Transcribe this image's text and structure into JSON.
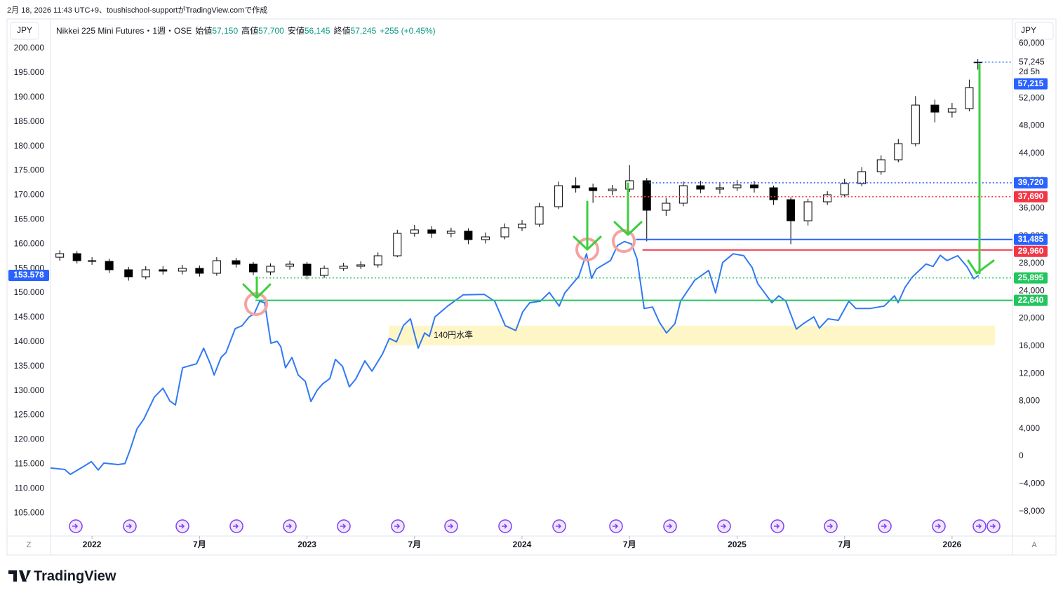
{
  "header": {
    "attribution": "2月 18, 2026 11:43 UTC+9、toushischool-supportがTradingView.comで作成",
    "currency_left": "JPY",
    "currency_right": "JPY"
  },
  "footer": {
    "logo": "TradingView",
    "left_button": "Z",
    "right_button": "A"
  },
  "chart_data": {
    "type": "candlestick",
    "title": "Nikkei 225 Mini Futures・1週・OSE",
    "ohlc_header": [
      {
        "label": "始値",
        "text": "57,150"
      },
      {
        "label": "高値",
        "text": "57,700"
      },
      {
        "label": "安値",
        "text": "56,145"
      },
      {
        "label": "終値",
        "text": "57,245"
      }
    ],
    "change": "+255 (+0.45%)",
    "countdown": "2d 5h",
    "grid": false,
    "xlim": [
      2021.807,
      2026.281
    ],
    "xticks": [
      2022,
      {
        "value": 2022.5,
        "label": "7月"
      },
      2023,
      {
        "value": 2023.5,
        "label": "7月"
      },
      2024,
      {
        "value": 2024.5,
        "label": "7月"
      },
      2025,
      {
        "value": 2025.5,
        "label": "7月"
      },
      2026
    ],
    "ylim": [
      100.29,
      205.87
    ],
    "yticks": [
      {
        "value": 105,
        "label": "105.000"
      },
      {
        "value": 110,
        "label": "110.000"
      },
      {
        "value": 115,
        "label": "115.000"
      },
      {
        "value": 120,
        "label": "120.000"
      },
      {
        "value": 125,
        "label": "125.000"
      },
      {
        "value": 130,
        "label": "130.000"
      },
      {
        "value": 135,
        "label": "135.000"
      },
      {
        "value": 140,
        "label": "140.000"
      },
      {
        "value": 145,
        "label": "145.000"
      },
      {
        "value": 150,
        "label": "150.000"
      },
      {
        "value": 155,
        "label": "155.000"
      },
      {
        "value": 160,
        "label": "160.000"
      },
      {
        "value": 165,
        "label": "165.000"
      },
      {
        "value": 170,
        "label": "170.000"
      },
      {
        "value": 175,
        "label": "175.000"
      },
      {
        "value": 180,
        "label": "180.000"
      },
      {
        "value": 185,
        "label": "185.000"
      },
      {
        "value": 190,
        "label": "190.000"
      },
      {
        "value": 195,
        "label": "195.000"
      },
      {
        "value": 200,
        "label": "200.000"
      }
    ],
    "y2lim": [
      -11605,
      63420
    ],
    "y2ticks": [
      {
        "value": -8000,
        "label": "−8,000"
      },
      {
        "value": -4000,
        "label": "−4,000"
      },
      0,
      {
        "value": 4000,
        "label": "4,000"
      },
      {
        "value": 8000,
        "label": "8,000"
      },
      {
        "value": 12000,
        "label": "12,000"
      },
      {
        "value": 16000,
        "label": "16,000"
      },
      {
        "value": 20000,
        "label": "20,000"
      },
      {
        "value": 24000,
        "label": "24,000"
      },
      {
        "value": 28000,
        "label": "28,000"
      },
      {
        "value": 32000,
        "label": "32,000"
      },
      {
        "value": 36000,
        "label": "36,000"
      },
      {
        "value": 40000,
        "label": "40,000"
      },
      {
        "value": 44000,
        "label": "44,000"
      },
      {
        "value": 48000,
        "label": "48,000"
      },
      {
        "value": 52000,
        "label": "52,000"
      },
      {
        "value": 56000,
        "label": "56,000"
      },
      {
        "value": 60000,
        "label": "60,000"
      }
    ],
    "series": [
      {
        "type": "candlestick",
        "axis": "y2",
        "up_color": "#ffffff",
        "down_color": "#000000",
        "outline_color": "#000000",
        "x": [
          2021.85,
          2021.93,
          2022,
          2022.08,
          2022.17,
          2022.25,
          2022.33,
          2022.42,
          2022.5,
          2022.58,
          2022.67,
          2022.75,
          2022.83,
          2022.92,
          2023,
          2023.08,
          2023.17,
          2023.25,
          2023.33,
          2023.42,
          2023.5,
          2023.58,
          2023.67,
          2023.75,
          2023.83,
          2023.92,
          2024,
          2024.08,
          2024.17,
          2024.25,
          2024.33,
          2024.42,
          2024.5,
          2024.58,
          2024.67,
          2024.75,
          2024.83,
          2024.92,
          2025,
          2025.08,
          2025.17,
          2025.25,
          2025.33,
          2025.42,
          2025.5,
          2025.58,
          2025.67,
          2025.75,
          2025.83,
          2025.92,
          2026,
          2026.08,
          2026.12
        ],
        "open": [
          28900,
          29420,
          28400,
          28300,
          27080,
          26060,
          27080,
          26880,
          27280,
          26570,
          28400,
          27890,
          26770,
          27590,
          27890,
          26260,
          27280,
          27590,
          27790,
          29110,
          32370,
          32880,
          32370,
          32680,
          31460,
          31860,
          33190,
          33700,
          36240,
          39290,
          38990,
          38580,
          38790,
          40010,
          35730,
          36750,
          39290,
          38790,
          38990,
          39400,
          38990,
          37260,
          34200,
          36950,
          37970,
          39600,
          41330,
          43060,
          45400,
          51000,
          49980,
          50490,
          57150
        ],
        "high": [
          29900,
          29800,
          28900,
          28700,
          27500,
          27600,
          27600,
          27800,
          27700,
          28900,
          28800,
          28200,
          28000,
          28400,
          28200,
          27700,
          28100,
          28300,
          29600,
          32900,
          33600,
          33400,
          33200,
          33100,
          32500,
          33800,
          34300,
          36800,
          39900,
          40500,
          39600,
          39400,
          42300,
          40400,
          37500,
          39900,
          40000,
          39800,
          40100,
          40000,
          39300,
          37600,
          37400,
          38500,
          40300,
          42000,
          43700,
          46100,
          52300,
          51800,
          51300,
          54700,
          57700
        ],
        "low": [
          28400,
          28000,
          27800,
          26600,
          25500,
          25700,
          26400,
          26400,
          26100,
          26200,
          27400,
          26300,
          26300,
          27100,
          25700,
          25900,
          26900,
          27200,
          27400,
          28900,
          31900,
          31700,
          31800,
          30800,
          30900,
          31500,
          32700,
          33300,
          35900,
          38300,
          36800,
          37900,
          38400,
          31200,
          34900,
          36300,
          38200,
          38100,
          38500,
          38300,
          36500,
          30800,
          33500,
          36500,
          37600,
          39200,
          40900,
          42700,
          45000,
          48500,
          49200,
          50100,
          56145
        ],
        "close": [
          29420,
          28400,
          28300,
          27080,
          26060,
          27080,
          26880,
          27280,
          26570,
          28400,
          27890,
          26770,
          27590,
          27890,
          26260,
          27280,
          27590,
          27790,
          29110,
          32370,
          32880,
          32370,
          32680,
          31460,
          31860,
          33190,
          33700,
          36240,
          39290,
          38990,
          38580,
          38790,
          40010,
          35730,
          36750,
          39290,
          38790,
          38990,
          39400,
          38990,
          37260,
          34200,
          36950,
          37970,
          39600,
          41330,
          43060,
          45400,
          51000,
          49980,
          50490,
          53550,
          57245
        ]
      },
      {
        "type": "line",
        "axis": "y",
        "color": "#3179f5",
        "label_color": "#2962ff",
        "x": [
          2021.807,
          2021.873,
          2021.899,
          2021.964,
          2021.997,
          2022.029,
          2022.055,
          2022.121,
          2022.153,
          2022.176,
          2022.209,
          2022.241,
          2022.29,
          2022.33,
          2022.362,
          2022.388,
          2022.421,
          2022.486,
          2022.519,
          2022.551,
          2022.568,
          2022.6,
          2022.623,
          2022.666,
          2022.698,
          2022.731,
          2022.754,
          2022.78,
          2022.803,
          2022.832,
          2022.861,
          2022.878,
          2022.9,
          2022.93,
          2022.959,
          2022.992,
          2023.018,
          2023.047,
          2023.073,
          2023.106,
          2023.132,
          2023.165,
          2023.197,
          2023.227,
          2023.269,
          2023.302,
          2023.351,
          2023.383,
          2023.416,
          2023.449,
          2023.481,
          2023.517,
          2023.547,
          2023.569,
          2023.595,
          2023.654,
          2023.726,
          2023.824,
          2023.873,
          2023.922,
          2023.971,
          2024.003,
          2024.036,
          2024.085,
          2024.127,
          2024.173,
          2024.199,
          2024.264,
          2024.3,
          2024.323,
          2024.346,
          2024.411,
          2024.444,
          2024.476,
          2024.509,
          2024.535,
          2024.568,
          2024.607,
          2024.639,
          2024.672,
          2024.711,
          2024.737,
          2024.803,
          2024.868,
          2024.9,
          2024.933,
          2024.982,
          2025.031,
          2025.07,
          2025.096,
          2025.162,
          2025.194,
          2025.227,
          2025.276,
          2025.308,
          2025.357,
          2025.383,
          2025.423,
          2025.471,
          2025.52,
          2025.553,
          2025.618,
          2025.684,
          2025.732,
          2025.749,
          2025.781,
          2025.814,
          2025.879,
          2025.912,
          2025.945,
          2025.977,
          2026.026,
          2026.069,
          2026.101,
          2026.124
        ],
        "values": [
          114.2,
          113.9,
          112.9,
          114.6,
          115.5,
          113.8,
          115.2,
          114.9,
          115.1,
          117.8,
          122.2,
          124.2,
          128.7,
          130.5,
          127.9,
          127.1,
          134.7,
          135.5,
          138.7,
          135.4,
          133.2,
          136.8,
          137.8,
          142.7,
          143.3,
          145.1,
          145.7,
          148.3,
          148.0,
          139.7,
          140.1,
          139.0,
          134.7,
          136.8,
          133.2,
          131.9,
          127.8,
          130.1,
          131.4,
          132.5,
          136.4,
          135.0,
          130.8,
          132.4,
          136.1,
          134.0,
          137.5,
          140.7,
          140.0,
          143.4,
          144.7,
          138.7,
          141.8,
          141.1,
          145.1,
          147.3,
          149.6,
          149.7,
          148.3,
          143.3,
          142.3,
          146.1,
          148.0,
          148.3,
          150.1,
          147.3,
          150.0,
          153.4,
          158.0,
          153.0,
          154.9,
          156.6,
          159.7,
          160.5,
          160.0,
          156.9,
          146.8,
          147.1,
          144.0,
          141.8,
          143.7,
          148.3,
          152.6,
          154.6,
          150.0,
          156.2,
          158.0,
          157.6,
          155.2,
          151.9,
          148.0,
          149.4,
          148.3,
          142.6,
          143.7,
          145.1,
          142.8,
          144.7,
          144.4,
          148.3,
          146.8,
          146.8,
          147.3,
          149.4,
          148.0,
          151.1,
          153.2,
          155.9,
          155.4,
          157.7,
          156.6,
          157.6,
          155.4,
          152.9,
          153.578
        ]
      }
    ],
    "levels": [
      {
        "value": 57245,
        "label": "57,245",
        "color": "#2962ff",
        "style": "dotted",
        "box": false,
        "x_start": 2026.12
      },
      {
        "value": 57215,
        "label": "57,215",
        "color": "#2962ff",
        "style": "none",
        "box": true,
        "x_start": 2026.12
      },
      {
        "value": 39720,
        "label": "39,720",
        "color": "#2962ff",
        "style": "dotted",
        "box": true,
        "x_start": 2024.59
      },
      {
        "value": 37690,
        "label": "37,690",
        "color": "#f23645",
        "style": "dotted",
        "box": true,
        "x_start": 2024.34
      },
      {
        "value": 31485,
        "label": "31,485",
        "color": "#2962ff",
        "style": "solid",
        "box": true,
        "x_start": 2024.53
      },
      {
        "value": 29960,
        "label": "29,960",
        "color": "#f23645",
        "style": "solid",
        "box": true,
        "x_start": 2024.56
      },
      {
        "value": 25895,
        "label": "25,895",
        "color": "#22c55e",
        "style": "dotted",
        "box": true,
        "x_start": 2022.76
      },
      {
        "value": 22640,
        "label": "22,640",
        "color": "#22c55e",
        "style": "solid",
        "box": true,
        "x_start": 2022.76
      }
    ],
    "band": {
      "label": "140円水準",
      "color": "#fff6c8",
      "ylim": [
        139.3,
        143.3
      ],
      "xlim": [
        2023.38,
        2026.2
      ]
    }
  }
}
